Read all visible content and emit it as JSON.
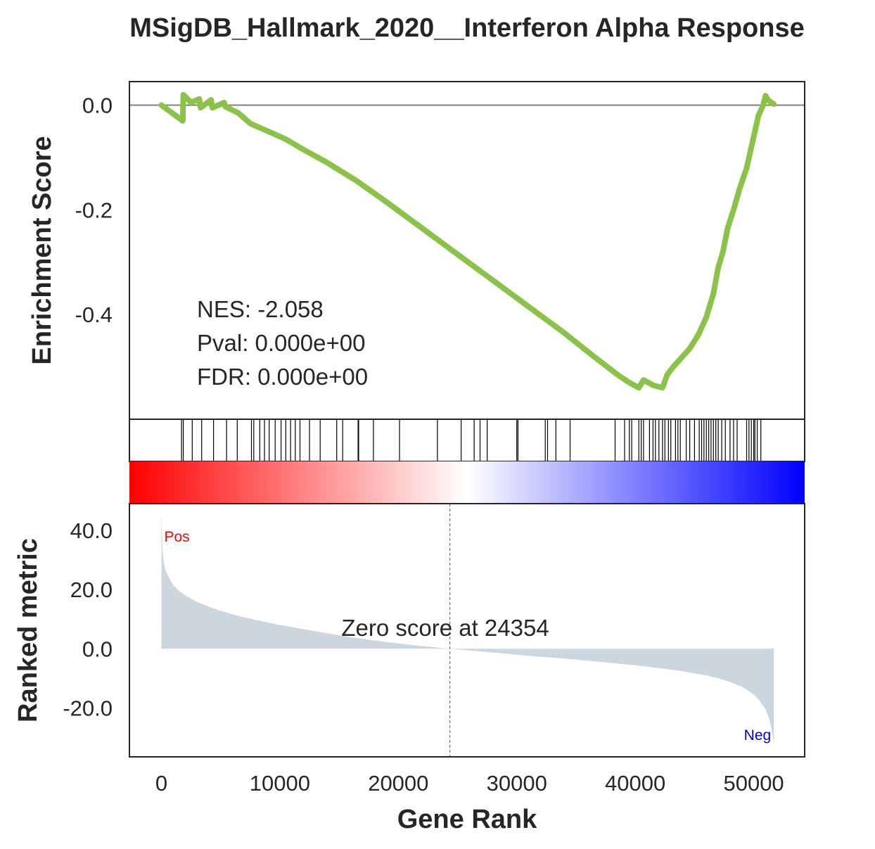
{
  "chart_data": {
    "type": "line",
    "title": "MSigDB_Hallmark_2020__Interferon Alpha Response",
    "xlabel": "Gene Rank",
    "xlim": [
      -2700,
      54300
    ],
    "x_ticks": [
      0,
      10000,
      20000,
      30000,
      40000,
      50000
    ],
    "n_genes": 51700,
    "enrichment_panel": {
      "ylabel": "Enrichment Score",
      "ylim": [
        -0.6,
        0.045
      ],
      "y_ticks": [
        0.0,
        -0.2,
        -0.4
      ],
      "y_tick_labels": [
        "0.0",
        "-0.2",
        "-0.4"
      ],
      "line_color": "#8bc34a",
      "zero_line_color": "#808080",
      "es_curve": {
        "x": [
          0,
          1800,
          1850,
          2500,
          3200,
          3300,
          4200,
          4300,
          5300,
          5400,
          6500,
          7500,
          9000,
          10500,
          12000,
          14000,
          16500,
          19000,
          22000,
          25000,
          28000,
          31000,
          34000,
          36500,
          38500,
          39500,
          40300,
          40700,
          41500,
          42300,
          42700,
          43200,
          43800,
          44600,
          45300,
          46000,
          46600,
          47000,
          47400,
          47800,
          48300,
          48800,
          49400,
          49900,
          50400,
          50800,
          51000,
          51150,
          51300,
          51700
        ],
        "y": [
          0.0,
          -0.03,
          0.02,
          0.005,
          0.012,
          -0.005,
          0.01,
          -0.005,
          0.005,
          -0.003,
          -0.015,
          -0.035,
          -0.05,
          -0.065,
          -0.085,
          -0.11,
          -0.145,
          -0.185,
          -0.235,
          -0.285,
          -0.335,
          -0.385,
          -0.435,
          -0.48,
          -0.515,
          -0.53,
          -0.54,
          -0.525,
          -0.535,
          -0.54,
          -0.515,
          -0.5,
          -0.485,
          -0.465,
          -0.44,
          -0.405,
          -0.36,
          -0.31,
          -0.28,
          -0.235,
          -0.2,
          -0.16,
          -0.12,
          -0.07,
          -0.02,
          0.0,
          0.018,
          0.012,
          0.008,
          0.002
        ]
      },
      "stats": {
        "nes": "NES: -2.058",
        "pval": "Pval: 0.000e+00",
        "fdr": "FDR: 0.000e+00"
      }
    },
    "hits_panel": {
      "hit_positions": [
        1700,
        1850,
        2600,
        3400,
        4400,
        5500,
        6400,
        7600,
        7800,
        8300,
        8700,
        9100,
        9600,
        10100,
        10500,
        10900,
        11300,
        11700,
        12500,
        13400,
        14800,
        15300,
        16600,
        16650,
        17900,
        20100,
        23300,
        25300,
        26400,
        26900,
        27500,
        30000,
        30100,
        32400,
        32600,
        33300,
        34500,
        38300,
        39100,
        39500,
        39700,
        40300,
        40500,
        40700,
        41200,
        41500,
        41700,
        42000,
        42300,
        42500,
        42800,
        43000,
        43400,
        43600,
        43800,
        44300,
        44600,
        45000,
        45400,
        45600,
        45800,
        46000,
        46200,
        46400,
        46600,
        46800,
        47000,
        47300,
        47600,
        48000,
        48300,
        48600,
        49400,
        49600,
        49800,
        50000,
        50100,
        50300,
        50600
      ]
    },
    "rank_gradient": {
      "stops": [
        "#ff0000",
        "#ffffff",
        "#0000ff"
      ]
    },
    "metric_panel": {
      "ylabel": "Ranked metric",
      "ylim": [
        -36.5,
        49
      ],
      "y_ticks": [
        40.0,
        20.0,
        0.0,
        -20.0
      ],
      "y_tick_labels": [
        "40.0",
        "20.0",
        "0.0",
        "-20.0"
      ],
      "fill_color": "#ccd6df",
      "metric_curve": {
        "x": [
          0,
          20,
          80,
          200,
          400,
          700,
          1000,
          1500,
          2000,
          3000,
          4000,
          5000,
          6000,
          8000,
          10000,
          12000,
          14000,
          16000,
          18000,
          20000,
          22000,
          24354,
          26000,
          28000,
          30000,
          32000,
          34000,
          36000,
          38000,
          40000,
          42000,
          44000,
          46000,
          47000,
          48000,
          49000,
          49500,
          50000,
          50500,
          51000,
          51300,
          51500,
          51650,
          51700
        ],
        "y": [
          48,
          43,
          34,
          29,
          26,
          23.5,
          21.5,
          19.5,
          18,
          15.8,
          14.2,
          12.8,
          11.6,
          9.7,
          8.0,
          6.6,
          5.2,
          3.9,
          2.8,
          1.8,
          0.9,
          0.0,
          -0.6,
          -1.3,
          -2.0,
          -2.7,
          -3.3,
          -4.0,
          -4.8,
          -5.6,
          -6.5,
          -7.6,
          -9.0,
          -10.0,
          -11.2,
          -12.8,
          -14.0,
          -15.5,
          -17.5,
          -20.5,
          -23.5,
          -27.0,
          -30.5,
          -33.0
        ]
      },
      "zero_score_x": 24354,
      "zero_score_label": "Zero score at 24354",
      "pos_label": "Pos",
      "neg_label": "Neg"
    }
  }
}
